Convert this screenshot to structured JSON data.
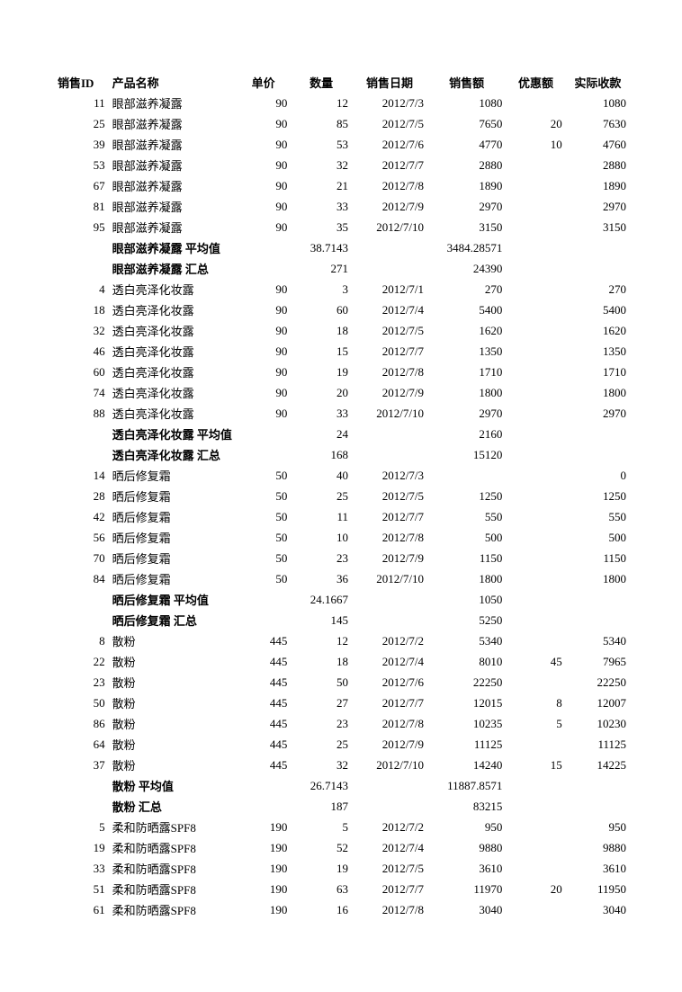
{
  "columns": [
    "销售ID",
    "产品名称",
    "单价",
    "数量",
    "销售日期",
    "销售额",
    "优惠额",
    "实际收款"
  ],
  "rows": [
    {
      "type": "data",
      "id": "11",
      "name": "眼部滋养凝露",
      "price": "90",
      "qty": "12",
      "date": "2012/7/3",
      "sales": "1080",
      "disc": "",
      "recv": "1080"
    },
    {
      "type": "data",
      "id": "25",
      "name": "眼部滋养凝露",
      "price": "90",
      "qty": "85",
      "date": "2012/7/5",
      "sales": "7650",
      "disc": "20",
      "recv": "7630"
    },
    {
      "type": "data",
      "id": "39",
      "name": "眼部滋养凝露",
      "price": "90",
      "qty": "53",
      "date": "2012/7/6",
      "sales": "4770",
      "disc": "10",
      "recv": "4760"
    },
    {
      "type": "data",
      "id": "53",
      "name": "眼部滋养凝露",
      "price": "90",
      "qty": "32",
      "date": "2012/7/7",
      "sales": "2880",
      "disc": "",
      "recv": "2880"
    },
    {
      "type": "data",
      "id": "67",
      "name": "眼部滋养凝露",
      "price": "90",
      "qty": "21",
      "date": "2012/7/8",
      "sales": "1890",
      "disc": "",
      "recv": "1890"
    },
    {
      "type": "data",
      "id": "81",
      "name": "眼部滋养凝露",
      "price": "90",
      "qty": "33",
      "date": "2012/7/9",
      "sales": "2970",
      "disc": "",
      "recv": "2970"
    },
    {
      "type": "data",
      "id": "95",
      "name": "眼部滋养凝露",
      "price": "90",
      "qty": "35",
      "date": "2012/7/10",
      "sales": "3150",
      "disc": "",
      "recv": "3150"
    },
    {
      "type": "avg",
      "name": "眼部滋养凝露 平均值",
      "qty": "38.7143",
      "sales": "3484.28571"
    },
    {
      "type": "sum",
      "name": "眼部滋养凝露 汇总",
      "qty": "271",
      "sales": "24390"
    },
    {
      "type": "data",
      "id": "4",
      "name": "透白亮泽化妆露",
      "price": "90",
      "qty": "3",
      "date": "2012/7/1",
      "sales": "270",
      "disc": "",
      "recv": "270"
    },
    {
      "type": "data",
      "id": "18",
      "name": "透白亮泽化妆露",
      "price": "90",
      "qty": "60",
      "date": "2012/7/4",
      "sales": "5400",
      "disc": "",
      "recv": "5400"
    },
    {
      "type": "data",
      "id": "32",
      "name": "透白亮泽化妆露",
      "price": "90",
      "qty": "18",
      "date": "2012/7/5",
      "sales": "1620",
      "disc": "",
      "recv": "1620"
    },
    {
      "type": "data",
      "id": "46",
      "name": "透白亮泽化妆露",
      "price": "90",
      "qty": "15",
      "date": "2012/7/7",
      "sales": "1350",
      "disc": "",
      "recv": "1350"
    },
    {
      "type": "data",
      "id": "60",
      "name": "透白亮泽化妆露",
      "price": "90",
      "qty": "19",
      "date": "2012/7/8",
      "sales": "1710",
      "disc": "",
      "recv": "1710"
    },
    {
      "type": "data",
      "id": "74",
      "name": "透白亮泽化妆露",
      "price": "90",
      "qty": "20",
      "date": "2012/7/9",
      "sales": "1800",
      "disc": "",
      "recv": "1800"
    },
    {
      "type": "data",
      "id": "88",
      "name": "透白亮泽化妆露",
      "price": "90",
      "qty": "33",
      "date": "2012/7/10",
      "sales": "2970",
      "disc": "",
      "recv": "2970"
    },
    {
      "type": "avg",
      "name": "透白亮泽化妆露 平均值",
      "qty": "24",
      "sales": "2160"
    },
    {
      "type": "sum",
      "name": "透白亮泽化妆露 汇总",
      "qty": "168",
      "sales": "15120"
    },
    {
      "type": "data",
      "id": "14",
      "name": "晒后修复霜",
      "price": "50",
      "qty": "40",
      "date": "2012/7/3",
      "sales": "",
      "disc": "",
      "recv": "0"
    },
    {
      "type": "data",
      "id": "28",
      "name": "晒后修复霜",
      "price": "50",
      "qty": "25",
      "date": "2012/7/5",
      "sales": "1250",
      "disc": "",
      "recv": "1250"
    },
    {
      "type": "data",
      "id": "42",
      "name": "晒后修复霜",
      "price": "50",
      "qty": "11",
      "date": "2012/7/7",
      "sales": "550",
      "disc": "",
      "recv": "550"
    },
    {
      "type": "data",
      "id": "56",
      "name": "晒后修复霜",
      "price": "50",
      "qty": "10",
      "date": "2012/7/8",
      "sales": "500",
      "disc": "",
      "recv": "500"
    },
    {
      "type": "data",
      "id": "70",
      "name": "晒后修复霜",
      "price": "50",
      "qty": "23",
      "date": "2012/7/9",
      "sales": "1150",
      "disc": "",
      "recv": "1150"
    },
    {
      "type": "data",
      "id": "84",
      "name": "晒后修复霜",
      "price": "50",
      "qty": "36",
      "date": "2012/7/10",
      "sales": "1800",
      "disc": "",
      "recv": "1800"
    },
    {
      "type": "avg",
      "name": "晒后修复霜 平均值",
      "qty": "24.1667",
      "sales": "1050"
    },
    {
      "type": "sum",
      "name": "晒后修复霜 汇总",
      "qty": "145",
      "sales": "5250"
    },
    {
      "type": "data",
      "id": "8",
      "name": "散粉",
      "price": "445",
      "qty": "12",
      "date": "2012/7/2",
      "sales": "5340",
      "disc": "",
      "recv": "5340"
    },
    {
      "type": "data",
      "id": "22",
      "name": "散粉",
      "price": "445",
      "qty": "18",
      "date": "2012/7/4",
      "sales": "8010",
      "disc": "45",
      "recv": "7965"
    },
    {
      "type": "data",
      "id": "23",
      "name": "散粉",
      "price": "445",
      "qty": "50",
      "date": "2012/7/6",
      "sales": "22250",
      "disc": "",
      "recv": "22250"
    },
    {
      "type": "data",
      "id": "50",
      "name": "散粉",
      "price": "445",
      "qty": "27",
      "date": "2012/7/7",
      "sales": "12015",
      "disc": "8",
      "recv": "12007"
    },
    {
      "type": "data",
      "id": "86",
      "name": "散粉",
      "price": "445",
      "qty": "23",
      "date": "2012/7/8",
      "sales": "10235",
      "disc": "5",
      "recv": "10230"
    },
    {
      "type": "data",
      "id": "64",
      "name": "散粉",
      "price": "445",
      "qty": "25",
      "date": "2012/7/9",
      "sales": "11125",
      "disc": "",
      "recv": "11125"
    },
    {
      "type": "data",
      "id": "37",
      "name": "散粉",
      "price": "445",
      "qty": "32",
      "date": "2012/7/10",
      "sales": "14240",
      "disc": "15",
      "recv": "14225"
    },
    {
      "type": "avg",
      "name": "散粉 平均值",
      "qty": "26.7143",
      "sales": "11887.8571"
    },
    {
      "type": "sum",
      "name": "散粉 汇总",
      "qty": "187",
      "sales": "83215"
    },
    {
      "type": "data",
      "id": "5",
      "name": "柔和防晒露SPF8",
      "price": "190",
      "qty": "5",
      "date": "2012/7/2",
      "sales": "950",
      "disc": "",
      "recv": "950"
    },
    {
      "type": "data",
      "id": "19",
      "name": "柔和防晒露SPF8",
      "price": "190",
      "qty": "52",
      "date": "2012/7/4",
      "sales": "9880",
      "disc": "",
      "recv": "9880"
    },
    {
      "type": "data",
      "id": "33",
      "name": "柔和防晒露SPF8",
      "price": "190",
      "qty": "19",
      "date": "2012/7/5",
      "sales": "3610",
      "disc": "",
      "recv": "3610"
    },
    {
      "type": "data",
      "id": "51",
      "name": "柔和防晒露SPF8",
      "price": "190",
      "qty": "63",
      "date": "2012/7/7",
      "sales": "11970",
      "disc": "20",
      "recv": "11950"
    },
    {
      "type": "data",
      "id": "61",
      "name": "柔和防晒露SPF8",
      "price": "190",
      "qty": "16",
      "date": "2012/7/8",
      "sales": "3040",
      "disc": "",
      "recv": "3040"
    }
  ]
}
